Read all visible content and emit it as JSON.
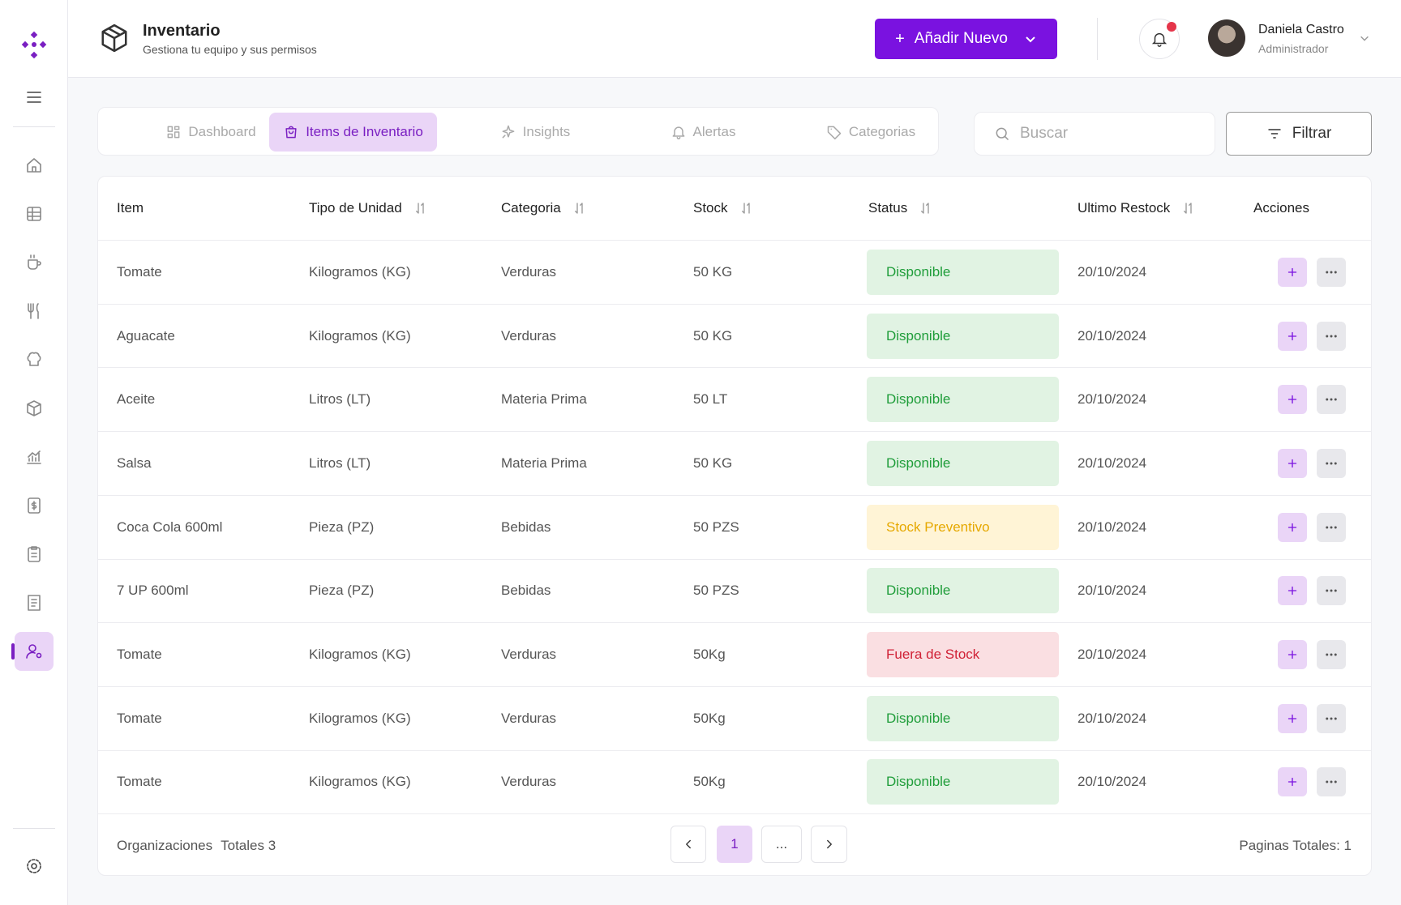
{
  "header": {
    "title": "Inventario",
    "subtitle": "Gestiona tu equipo y sus permisos",
    "add_button": "Añadir Nuevo",
    "user": {
      "name": "Daniela Castro",
      "role": "Administrador"
    }
  },
  "tabs": [
    {
      "label": "Dashboard",
      "active": false
    },
    {
      "label": "Items de Inventario",
      "active": true
    },
    {
      "label": "Insights",
      "active": false
    },
    {
      "label": "Alertas",
      "active": false
    },
    {
      "label": "Categorias",
      "active": false
    }
  ],
  "search": {
    "placeholder": "Buscar"
  },
  "filter_button": "Filtrar",
  "table": {
    "columns": [
      "Item",
      "Tipo de Unidad",
      "Categoria",
      "Stock",
      "Status",
      "Ultimo Restock",
      "Acciones"
    ],
    "rows": [
      {
        "cells": [
          "Tomate",
          "Kilogramos (KG)",
          "Verduras",
          "50 KG",
          "Disponible",
          "20/10/2024"
        ],
        "status_color": "green"
      },
      {
        "cells": [
          "Aguacate",
          "Kilogramos (KG)",
          "Verduras",
          "50 KG",
          "Disponible",
          "20/10/2024"
        ],
        "status_color": "green"
      },
      {
        "cells": [
          "Aceite",
          "Litros (LT)",
          "Materia Prima",
          "50 LT",
          "Disponible",
          "20/10/2024"
        ],
        "status_color": "green"
      },
      {
        "cells": [
          "Salsa",
          "Litros (LT)",
          "Materia Prima",
          "50 KG",
          "Disponible",
          "20/10/2024"
        ],
        "status_color": "green"
      },
      {
        "cells": [
          "Coca Cola 600ml",
          "Pieza (PZ)",
          "Bebidas",
          "50 PZS",
          "Stock Preventivo",
          "20/10/2024"
        ],
        "status_color": "yellow"
      },
      {
        "cells": [
          "7 UP 600ml",
          "Pieza (PZ)",
          "Bebidas",
          "50 PZS",
          "Disponible",
          "20/10/2024"
        ],
        "status_color": "green"
      },
      {
        "cells": [
          "Tomate",
          "Kilogramos (KG)",
          "Verduras",
          "50Kg",
          "Fuera de Stock",
          "20/10/2024"
        ],
        "status_color": "red"
      },
      {
        "cells": [
          "Tomate",
          "Kilogramos (KG)",
          "Verduras",
          "50Kg",
          "Disponible",
          "20/10/2024"
        ],
        "status_color": "green"
      },
      {
        "cells": [
          "Tomate",
          "Kilogramos (KG)",
          "Verduras",
          "50Kg",
          "Disponible",
          "20/10/2024"
        ],
        "status_color": "green"
      }
    ]
  },
  "footer": {
    "label": "Organizaciones",
    "total": "Totales 3",
    "pages": [
      "1",
      "..."
    ],
    "total_pages": "Paginas Totales: 1"
  }
}
